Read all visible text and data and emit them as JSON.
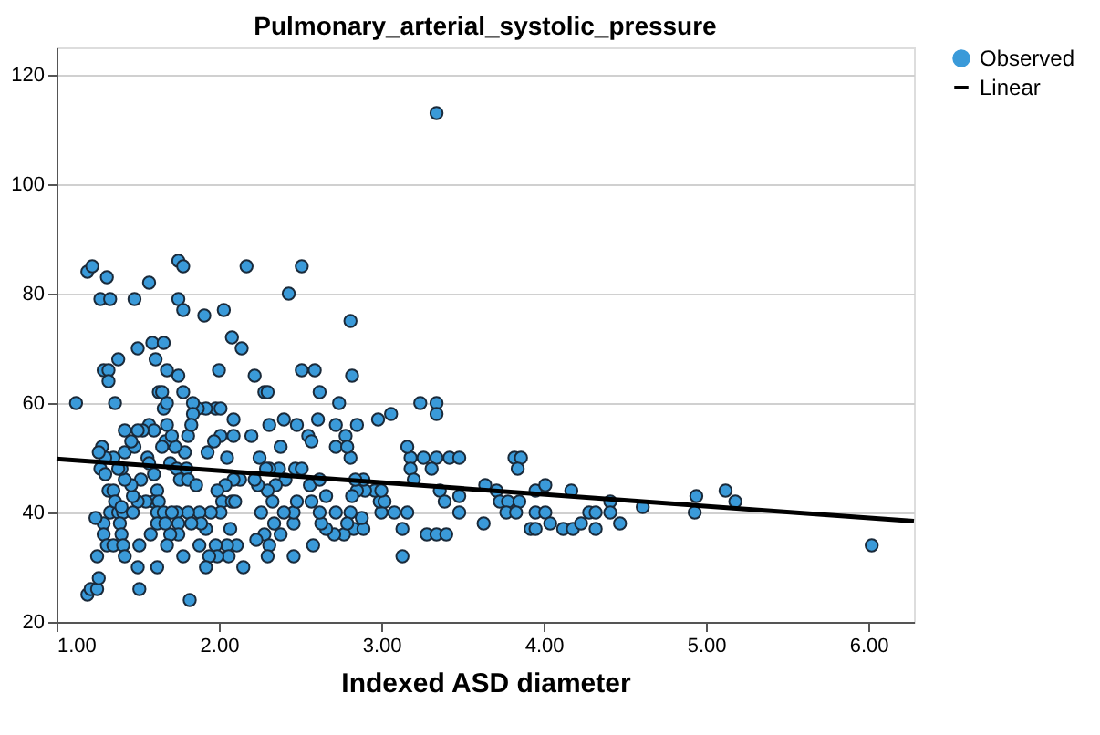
{
  "chart_data": {
    "type": "scatter",
    "title": "Pulmonary_arterial_systolic_pressure",
    "xlabel": "Indexed ASD diameter",
    "xlim": [
      1.0,
      6.28
    ],
    "ylim": [
      20,
      125
    ],
    "xticks": [
      {
        "value": 1,
        "label": "1.00"
      },
      {
        "value": 2,
        "label": "2.00"
      },
      {
        "value": 3,
        "label": "3.00"
      },
      {
        "value": 4,
        "label": "4.00"
      },
      {
        "value": 5,
        "label": "5.00"
      },
      {
        "value": 6,
        "label": "6.00"
      }
    ],
    "yticks": [
      20,
      40,
      60,
      80,
      100,
      120
    ],
    "grid": "y",
    "legend": "top right",
    "series": [
      {
        "name": "Observed",
        "color": "#3a9ad9",
        "marker": "circle",
        "x": [
          1.12,
          1.19,
          1.22,
          1.27,
          1.33,
          1.31,
          1.29,
          1.32,
          1.32,
          1.36,
          1.38,
          1.48,
          1.5,
          1.57,
          1.59,
          1.66,
          1.61,
          1.63,
          1.65,
          1.75,
          1.78,
          1.75,
          1.78,
          1.75,
          1.78,
          1.68,
          1.91,
          2.03,
          2.0,
          2.08,
          2.14,
          2.17,
          2.22,
          2.28,
          2.3,
          2.43,
          2.51,
          2.51,
          2.59,
          2.62,
          2.81,
          2.82,
          2.74,
          3.24,
          3.34,
          3.34,
          3.34,
          3.06,
          2.98,
          2.2,
          3.18,
          3.26,
          3.34,
          3.42,
          3.48,
          3.82,
          3.86,
          3.84,
          3.31,
          3.16,
          3.18,
          3.2,
          3.64,
          3.71,
          3.73,
          3.78,
          3.85,
          3.77,
          3.83,
          3.63,
          3.36,
          3.39,
          3.48,
          3.48,
          3.28,
          3.34,
          3.4,
          3.13,
          3.13,
          3.16,
          3.08,
          3.0,
          2.99,
          2.96,
          2.83,
          2.77,
          2.71,
          2.66,
          2.63,
          2.62,
          2.58,
          2.57,
          2.56,
          2.89,
          2.88,
          2.72,
          2.66,
          2.62,
          2.48,
          2.55,
          2.57,
          2.61,
          2.72,
          2.72,
          2.78,
          2.85,
          2.81,
          2.79,
          2.4,
          2.38,
          2.31,
          2.25,
          2.47,
          2.37,
          2.31,
          2.29,
          2.41,
          2.35,
          2.3,
          2.24,
          2.22,
          2.33,
          2.26,
          2.34,
          2.28,
          2.38,
          2.31,
          2.3,
          2.46,
          2.46,
          2.46,
          2.4,
          2.23,
          2.15,
          2.09,
          2.09,
          2.05,
          1.98,
          2.01,
          2.01,
          1.92,
          1.87,
          1.84,
          1.84,
          1.97,
          1.93,
          2.13,
          2.09,
          2.04,
          1.99,
          2.02,
          2.08,
          2.1,
          2.01,
          1.95,
          1.88,
          1.81,
          1.74,
          2.07,
          2.11,
          2.05,
          1.98,
          2.06,
          1.99,
          1.94,
          1.92,
          1.82,
          1.92,
          1.89,
          1.83,
          1.75,
          1.78,
          1.75,
          1.7,
          1.68,
          1.7,
          1.74,
          1.8,
          1.76,
          1.81,
          1.86,
          1.79,
          1.81,
          1.83,
          1.73,
          1.67,
          1.68,
          1.65,
          1.66,
          1.68,
          1.71,
          1.57,
          1.6,
          1.53,
          1.5,
          1.42,
          1.56,
          1.57,
          1.6,
          1.62,
          1.6,
          1.63,
          1.55,
          1.5,
          1.47,
          1.52,
          1.46,
          1.42,
          1.4,
          1.42,
          1.48,
          1.46,
          1.35,
          1.38,
          1.3,
          1.28,
          1.26,
          1.27,
          1.3,
          1.32,
          1.35,
          1.33,
          1.38,
          1.41,
          1.47,
          1.62,
          1.66,
          1.71,
          1.36,
          1.4,
          1.39,
          1.4,
          1.29,
          1.29,
          1.31,
          1.35,
          1.41,
          1.42,
          1.51,
          1.58,
          1.62,
          1.67,
          1.24,
          1.25,
          1.19,
          1.21,
          1.25,
          1.26,
          1.5,
          1.51,
          1.62,
          1.88,
          2.81,
          2.79,
          2.9,
          2.85,
          2.89,
          2.84,
          2.82,
          3.02,
          3.0,
          2.51,
          2.48,
          3.95,
          4.01,
          3.95,
          4.01,
          4.04,
          3.92,
          3.95,
          4.12,
          4.17,
          4.18,
          4.23,
          4.28,
          4.32,
          4.32,
          4.41,
          4.41,
          4.47,
          4.61,
          4.93,
          4.94,
          5.12,
          5.18,
          6.02
        ],
        "values": [
          60,
          84,
          85,
          79,
          79,
          83,
          66,
          66,
          64,
          60,
          68,
          79,
          70,
          82,
          71,
          71,
          68,
          62,
          62,
          86,
          85,
          79,
          77,
          65,
          62,
          66,
          76,
          77,
          66,
          72,
          70,
          85,
          65,
          62,
          62,
          80,
          85,
          66,
          66,
          62,
          75,
          65,
          60,
          60,
          60,
          58,
          113,
          58,
          57,
          54,
          50,
          50,
          50,
          50,
          50,
          50,
          50,
          48,
          48,
          52,
          48,
          46,
          45,
          44,
          42,
          42,
          42,
          40,
          40,
          38,
          44,
          42,
          43,
          40,
          36,
          36,
          36,
          37,
          32,
          40,
          40,
          40,
          42,
          44,
          37,
          36,
          36,
          37,
          38,
          40,
          34,
          42,
          45,
          37,
          39,
          40,
          43,
          46,
          56,
          54,
          53,
          57,
          56,
          52,
          54,
          56,
          50,
          52,
          57,
          52,
          56,
          50,
          48,
          48,
          48,
          48,
          46,
          45,
          44,
          45,
          46,
          42,
          40,
          38,
          36,
          36,
          34,
          32,
          32,
          38,
          40,
          40,
          35,
          30,
          54,
          57,
          50,
          59,
          59,
          54,
          59,
          59,
          60,
          58,
          53,
          51,
          46,
          46,
          45,
          44,
          42,
          42,
          42,
          40,
          40,
          40,
          40,
          40,
          37,
          34,
          34,
          34,
          32,
          32,
          32,
          30,
          24,
          37,
          38,
          38,
          38,
          32,
          36,
          36,
          34,
          49,
          48,
          48,
          46,
          46,
          45,
          51,
          54,
          56,
          52,
          53,
          56,
          52,
          59,
          60,
          54,
          56,
          55,
          55,
          55,
          55,
          50,
          49,
          47,
          44,
          42,
          42,
          42,
          42,
          43,
          46,
          45,
          46,
          48,
          51,
          52,
          53,
          50,
          48,
          50,
          52,
          51,
          48,
          47,
          44,
          44,
          40,
          40,
          40,
          40,
          40,
          40,
          40,
          42,
          41,
          38,
          36,
          38,
          36,
          34,
          34,
          34,
          32,
          34,
          36,
          38,
          38,
          39,
          32,
          25,
          26,
          26,
          28,
          30,
          26,
          30,
          34,
          40,
          38,
          44,
          44,
          46,
          46,
          43,
          42,
          44,
          48,
          42,
          44,
          45,
          40,
          40,
          38,
          37,
          37,
          37,
          44,
          37,
          38,
          40,
          40,
          37,
          42,
          40,
          38,
          41,
          40,
          43,
          44,
          42,
          34
        ]
      },
      {
        "name": "Linear",
        "type": "line",
        "line_style": "solid",
        "color": "#000000",
        "x": [
          1.0,
          6.28
        ],
        "values": [
          49.8,
          38.4
        ]
      }
    ]
  }
}
